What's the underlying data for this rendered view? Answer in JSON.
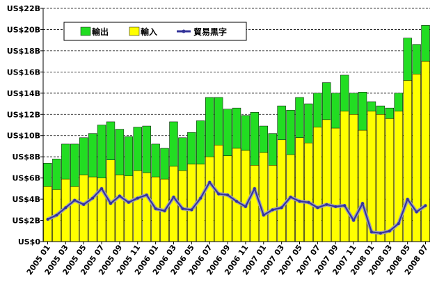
{
  "chart_data": {
    "type": "bar",
    "categories": [
      "2005 01",
      "2005 02",
      "2005 03",
      "2005 04",
      "2005 05",
      "2005 06",
      "2005 07",
      "2005 08",
      "2005 09",
      "2005 10",
      "2005 11",
      "2005 12",
      "2006 01",
      "2006 02",
      "2006 03",
      "2006 04",
      "2006 05",
      "2006 06",
      "2006 07",
      "2006 08",
      "2006 09",
      "2006 10",
      "2006 11",
      "2006 12",
      "2007 01",
      "2007 02",
      "2007 03",
      "2007 04",
      "2007 05",
      "2007 06",
      "2007 07",
      "2007 08",
      "2007 09",
      "2007 10",
      "2007 11",
      "2007 12",
      "2008 01",
      "2008 02",
      "2008 03",
      "2008 04",
      "2008 05",
      "2008 06",
      "2008 07"
    ],
    "x_tick_labels": [
      "2005 01",
      "2005 03",
      "2005 05",
      "2005 07",
      "2005 09",
      "2005 11",
      "2006 01",
      "2006 03",
      "2006 05",
      "2006 07",
      "2006 09",
      "2006 11",
      "2007 01",
      "2007 03",
      "2007 05",
      "2007 07",
      "2007 09",
      "2007 11",
      "2008 01",
      "2008 03",
      "2008 05",
      "2008 07"
    ],
    "y_tick_labels": [
      "US$0",
      "US$2B",
      "US$4B",
      "US$6B",
      "US$8B",
      "US$10B",
      "US$12B",
      "US$14B",
      "US$16B",
      "US$18B",
      "US$20B",
      "US$22B"
    ],
    "ylim": [
      0,
      22
    ],
    "grid": true,
    "legend_position": "top-left",
    "series": [
      {
        "name": "輸出",
        "color": "#22dd22",
        "values": [
          7.4,
          7.8,
          9.2,
          9.2,
          9.8,
          10.2,
          11.0,
          11.3,
          10.6,
          9.9,
          10.8,
          10.9,
          9.2,
          8.8,
          11.3,
          9.8,
          10.3,
          11.4,
          13.6,
          13.6,
          12.5,
          12.6,
          11.9,
          12.2,
          10.9,
          10.2,
          12.8,
          12.4,
          13.6,
          13.0,
          14.0,
          15.0,
          14.0,
          15.7,
          14.0,
          14.1,
          13.2,
          12.8,
          12.6,
          14.0,
          19.2,
          18.6,
          20.4
        ]
      },
      {
        "name": "輸入",
        "color": "#ffff00",
        "values": [
          5.2,
          4.9,
          5.9,
          5.2,
          6.3,
          6.1,
          6.0,
          7.7,
          6.3,
          6.2,
          6.7,
          6.5,
          6.1,
          5.9,
          7.1,
          6.7,
          7.3,
          7.3,
          8.0,
          9.1,
          8.1,
          8.8,
          8.6,
          7.2,
          8.4,
          7.2,
          9.6,
          8.2,
          9.8,
          9.3,
          10.8,
          11.5,
          10.7,
          12.3,
          12.0,
          10.5,
          12.3,
          12.0,
          11.6,
          12.3,
          15.2,
          15.8,
          17.0
        ]
      },
      {
        "name": "貿易黒字",
        "color": "#333399",
        "values": [
          2.1,
          2.5,
          3.2,
          3.9,
          3.5,
          4.1,
          5.0,
          3.6,
          4.3,
          3.7,
          4.1,
          4.4,
          3.1,
          2.9,
          4.2,
          3.1,
          3.0,
          4.1,
          5.6,
          4.5,
          4.4,
          3.8,
          3.3,
          5.0,
          2.5,
          3.0,
          3.2,
          4.2,
          3.8,
          3.7,
          3.2,
          3.5,
          3.3,
          3.4,
          2.0,
          3.6,
          0.9,
          0.8,
          1.0,
          1.7,
          4.0,
          2.8,
          3.4
        ]
      }
    ]
  }
}
